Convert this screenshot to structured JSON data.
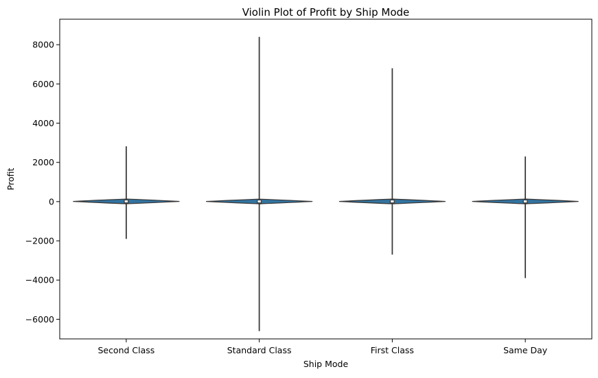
{
  "chart_data": {
    "type": "violin",
    "title": "Violin Plot of Profit by Ship Mode",
    "xlabel": "Ship Mode",
    "ylabel": "Profit",
    "ylim": [
      -7000,
      9300
    ],
    "yticks": [
      -6000,
      -4000,
      -2000,
      0,
      2000,
      4000,
      6000,
      8000
    ],
    "ytick_labels": [
      "−6000",
      "−4000",
      "−2000",
      "0",
      "2000",
      "4000",
      "6000",
      "8000"
    ],
    "categories": [
      "Second Class",
      "Standard Class",
      "First Class",
      "Same Day"
    ],
    "violins": [
      {
        "category": "Second Class",
        "min": -1900,
        "max": 2820,
        "q1": 3,
        "median": 10,
        "q3": 30
      },
      {
        "category": "Standard Class",
        "min": -6600,
        "max": 8400,
        "q1": 2,
        "median": 8,
        "q3": 28
      },
      {
        "category": "First Class",
        "min": -2700,
        "max": 6800,
        "q1": 2,
        "median": 9,
        "q3": 30
      },
      {
        "category": "Same Day",
        "min": -3900,
        "max": 2300,
        "q1": 1,
        "median": 9,
        "q3": 28
      }
    ],
    "colors": {
      "violin_fill": "#3274a1",
      "violin_edge": "#3a3a3a",
      "box": "#3a3a3a",
      "median_marker": "#ffffff"
    },
    "grid": false,
    "legend": "none"
  }
}
